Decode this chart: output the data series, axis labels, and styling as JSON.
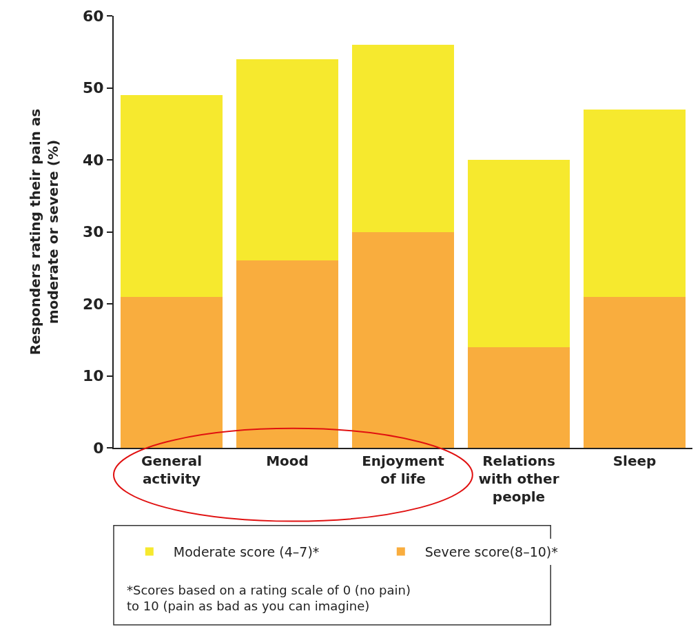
{
  "chart_data": {
    "type": "bar",
    "stacked": true,
    "ylabel": "Responders rating their pain as\nmoderate or severe (%)",
    "categories": [
      "General\nactivity",
      "Mood",
      "Enjoyment\nof life",
      "Relations\nwith other\npeople",
      "Sleep"
    ],
    "series": [
      {
        "name": "Severe score(8–10)*",
        "color": "#f9ad3e",
        "values": [
          21,
          26,
          30,
          14,
          21
        ]
      },
      {
        "name": "Moderate score (4–7)*",
        "color": "#f6e92e",
        "values": [
          28,
          28,
          26,
          26,
          26
        ]
      }
    ],
    "ylim": [
      0,
      60
    ],
    "yticks": [
      0,
      10,
      20,
      30,
      40,
      50,
      60
    ],
    "legend": "bottom",
    "annotations": [
      "*Scores based on a rating scale of 0 (no pain)\nto 10 (pain as bad as you can imagine)"
    ]
  }
}
